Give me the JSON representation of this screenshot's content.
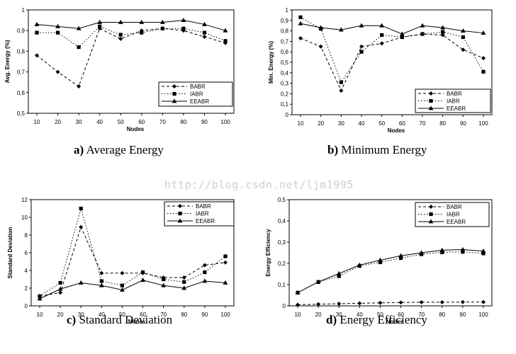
{
  "watermark": "http://blog.csdn.net/ljm1995",
  "series_style": {
    "BABR": {
      "dash": "4,3",
      "marker": "diamond"
    },
    "IABR": {
      "dash": "1.5,2.5",
      "marker": "square"
    },
    "EEABR": {
      "dash": "",
      "marker": "triangle"
    }
  },
  "chart_data": [
    {
      "type": "line",
      "panel_letter": "a)",
      "caption": "Average Energy",
      "xlabel": "Nodes",
      "ylabel": "Avg. Energy (%)",
      "x": [
        10,
        20,
        30,
        40,
        50,
        60,
        70,
        80,
        90,
        100
      ],
      "xticks": [
        "10",
        "20",
        "30",
        "40",
        "50",
        "60",
        "70",
        "80",
        "90",
        "100"
      ],
      "ylim": [
        0.5,
        1.0
      ],
      "yticks": [
        0.5,
        0.6,
        0.7,
        0.8,
        0.9,
        1.0
      ],
      "ytick_labels": [
        "0,5",
        "0,6",
        "0,7",
        "0,8",
        "0,9",
        "1"
      ],
      "legend_position": "bottom-right",
      "series": [
        {
          "name": "BABR",
          "values": [
            0.78,
            0.7,
            0.63,
            0.91,
            0.86,
            0.9,
            0.91,
            0.9,
            0.87,
            0.84
          ]
        },
        {
          "name": "IABR",
          "values": [
            0.89,
            0.89,
            0.82,
            0.92,
            0.88,
            0.89,
            0.91,
            0.91,
            0.89,
            0.85
          ]
        },
        {
          "name": "EEABR",
          "values": [
            0.93,
            0.92,
            0.91,
            0.94,
            0.94,
            0.94,
            0.94,
            0.95,
            0.93,
            0.9
          ]
        }
      ]
    },
    {
      "type": "line",
      "panel_letter": "b)",
      "caption": "Minimum Energy",
      "xlabel": "Nodes",
      "ylabel": "Min. Energy (%)",
      "x": [
        10,
        20,
        30,
        40,
        50,
        60,
        70,
        80,
        90,
        100
      ],
      "xticks": [
        "10",
        "20",
        "30",
        "40",
        "50",
        "60",
        "70",
        "80",
        "90",
        "100"
      ],
      "ylim": [
        0,
        1
      ],
      "yticks": [
        0,
        0.1,
        0.2,
        0.3,
        0.4,
        0.5,
        0.6,
        0.7,
        0.8,
        0.9,
        1.0
      ],
      "ytick_labels": [
        "0",
        "0,1",
        "0,2",
        "0,3",
        "0,4",
        "0,5",
        "0,6",
        "0,7",
        "0,8",
        "0,9",
        "1"
      ],
      "legend_position": "bottom-right",
      "series": [
        {
          "name": "BABR",
          "values": [
            0.73,
            0.65,
            0.23,
            0.65,
            0.68,
            0.74,
            0.77,
            0.76,
            0.62,
            0.54
          ]
        },
        {
          "name": "IABR",
          "values": [
            0.93,
            0.82,
            0.31,
            0.6,
            0.76,
            0.74,
            0.77,
            0.79,
            0.74,
            0.41
          ]
        },
        {
          "name": "EEABR",
          "values": [
            0.87,
            0.83,
            0.81,
            0.85,
            0.85,
            0.77,
            0.85,
            0.83,
            0.8,
            0.78
          ]
        }
      ]
    },
    {
      "type": "line",
      "panel_letter": "c)",
      "caption": "Standard Deviation",
      "xlabel": "Nodes",
      "ylabel": "Standard Deviation",
      "x": [
        10,
        20,
        30,
        40,
        50,
        60,
        70,
        80,
        90,
        100
      ],
      "xticks": [
        "10",
        "20",
        "30",
        "40",
        "50",
        "60",
        "70",
        "80",
        "90",
        "100"
      ],
      "ylim": [
        0,
        12
      ],
      "yticks": [
        0,
        2,
        4,
        6,
        8,
        10,
        12
      ],
      "ytick_labels": [
        "0",
        "2",
        "4",
        "6",
        "8",
        "10",
        "12"
      ],
      "legend_position": "top-right",
      "series": [
        {
          "name": "BABR",
          "values": [
            1.1,
            1.5,
            8.9,
            3.7,
            3.7,
            3.7,
            3.2,
            3.2,
            4.6,
            4.9
          ]
        },
        {
          "name": "IABR",
          "values": [
            1.1,
            2.6,
            11.0,
            2.8,
            2.3,
            3.8,
            3.0,
            2.7,
            3.8,
            5.6
          ]
        },
        {
          "name": "EEABR",
          "values": [
            0.8,
            1.9,
            2.6,
            2.3,
            1.8,
            2.9,
            2.3,
            2.0,
            2.8,
            2.6
          ]
        }
      ]
    },
    {
      "type": "line",
      "panel_letter": "d)",
      "caption": "Energy Efficiency",
      "xlabel": "Nodes",
      "ylabel": "Energy Efficiency",
      "x": [
        10,
        20,
        30,
        40,
        50,
        60,
        70,
        80,
        90,
        100
      ],
      "xticks": [
        "10",
        "20",
        "30",
        "40",
        "50",
        "60",
        "70",
        "80",
        "90",
        "100"
      ],
      "ylim": [
        0,
        0.5
      ],
      "yticks": [
        0,
        0.1,
        0.2,
        0.3,
        0.4,
        0.5
      ],
      "ytick_labels": [
        "0",
        "0,1",
        "0,2",
        "0,3",
        "0,4",
        "0,5"
      ],
      "legend_position": "top-right",
      "series": [
        {
          "name": "BABR",
          "values": [
            0.005,
            0.008,
            0.01,
            0.012,
            0.014,
            0.016,
            0.017,
            0.017,
            0.018,
            0.018
          ]
        },
        {
          "name": "IABR",
          "values": [
            0.062,
            0.112,
            0.14,
            0.188,
            0.205,
            0.225,
            0.243,
            0.252,
            0.254,
            0.247
          ]
        },
        {
          "name": "EEABR",
          "values": [
            0.062,
            0.113,
            0.152,
            0.192,
            0.215,
            0.236,
            0.25,
            0.262,
            0.265,
            0.258
          ]
        }
      ]
    }
  ]
}
